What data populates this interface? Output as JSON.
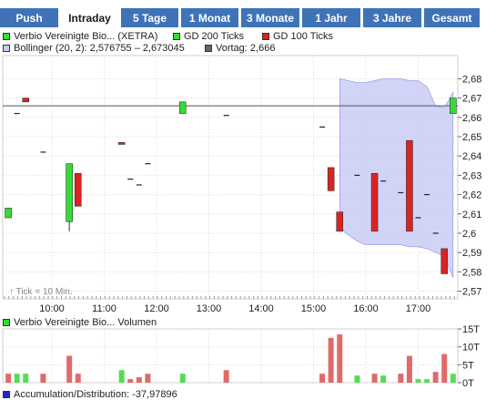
{
  "tabs": [
    {
      "label": "Push",
      "active": false
    },
    {
      "label": "Intraday",
      "active": true
    },
    {
      "label": "5 Tage",
      "active": false
    },
    {
      "label": "1 Monat",
      "active": false
    },
    {
      "label": "3 Monate",
      "active": false
    },
    {
      "label": "1 Jahr",
      "active": false
    },
    {
      "label": "3 Jahre",
      "active": false
    },
    {
      "label": "Gesamt",
      "active": false
    }
  ],
  "legend": {
    "series": "Verbio Vereinigte Bio... (XETRA)",
    "gd200": "GD 200 Ticks",
    "gd100": "GD 100 Ticks",
    "bollinger": "Bollinger (20, 2): 2,576755 – 2,673045",
    "vortag": "Vortag: 2,666"
  },
  "colors": {
    "up": "#33dd33",
    "down": "#dd2222",
    "band": "#c9ccf6",
    "band_edge": "#8a8fe8",
    "volume": "#e06a6a",
    "volume_up": "#55dd55",
    "grid": "#d9d9d9",
    "tab_bg": "#3f73b8"
  },
  "tick_note": "↑ Tick = 10 Min.",
  "volume_legend": "Verbio Vereinigte Bio... Volumen",
  "ad_legend": "Accumulation/Distribution: -37,97896",
  "chart_data": {
    "type": "candlestick",
    "x_ticks": [
      "10:00",
      "11:00",
      "12:00",
      "13:00",
      "14:00",
      "15:00",
      "16:00",
      "17:00"
    ],
    "y_ticks": [
      "2,68",
      "2,67",
      "2,66",
      "2,65",
      "2,64",
      "2,63",
      "2,62",
      "2,61",
      "2,6",
      "2,59",
      "2,58",
      "2,57"
    ],
    "ylim": [
      2.566,
      2.692
    ],
    "vortag": 2.666,
    "candles": [
      {
        "t": "09:10",
        "o": 2.608,
        "h": 2.613,
        "l": 2.608,
        "c": 2.613
      },
      {
        "t": "09:20",
        "o": 2.662,
        "h": 2.662,
        "l": 2.662,
        "c": 2.662
      },
      {
        "t": "09:30",
        "o": 2.67,
        "h": 2.67,
        "l": 2.668,
        "c": 2.668
      },
      {
        "t": "09:50",
        "o": 2.642,
        "h": 2.642,
        "l": 2.642,
        "c": 2.642
      },
      {
        "t": "10:20",
        "o": 2.606,
        "h": 2.636,
        "l": 2.601,
        "c": 2.636
      },
      {
        "t": "10:30",
        "o": 2.631,
        "h": 2.631,
        "l": 2.614,
        "c": 2.614
      },
      {
        "t": "11:20",
        "o": 2.647,
        "h": 2.647,
        "l": 2.646,
        "c": 2.646
      },
      {
        "t": "11:30",
        "o": 2.628,
        "h": 2.628,
        "l": 2.628,
        "c": 2.628
      },
      {
        "t": "11:40",
        "o": 2.625,
        "h": 2.625,
        "l": 2.625,
        "c": 2.625
      },
      {
        "t": "11:50",
        "o": 2.636,
        "h": 2.636,
        "l": 2.636,
        "c": 2.636
      },
      {
        "t": "12:30",
        "o": 2.662,
        "h": 2.668,
        "l": 2.662,
        "c": 2.668
      },
      {
        "t": "13:20",
        "o": 2.661,
        "h": 2.661,
        "l": 2.661,
        "c": 2.661
      },
      {
        "t": "15:10",
        "o": 2.655,
        "h": 2.655,
        "l": 2.655,
        "c": 2.655
      },
      {
        "t": "15:20",
        "o": 2.634,
        "h": 2.634,
        "l": 2.622,
        "c": 2.622
      },
      {
        "t": "15:30",
        "o": 2.611,
        "h": 2.611,
        "l": 2.601,
        "c": 2.601
      },
      {
        "t": "15:50",
        "o": 2.63,
        "h": 2.63,
        "l": 2.63,
        "c": 2.63
      },
      {
        "t": "16:10",
        "o": 2.631,
        "h": 2.631,
        "l": 2.601,
        "c": 2.601
      },
      {
        "t": "16:20",
        "o": 2.627,
        "h": 2.627,
        "l": 2.627,
        "c": 2.627
      },
      {
        "t": "16:40",
        "o": 2.621,
        "h": 2.621,
        "l": 2.621,
        "c": 2.621
      },
      {
        "t": "16:50",
        "o": 2.648,
        "h": 2.648,
        "l": 2.601,
        "c": 2.601
      },
      {
        "t": "17:00",
        "o": 2.608,
        "h": 2.608,
        "l": 2.608,
        "c": 2.608
      },
      {
        "t": "17:10",
        "o": 2.62,
        "h": 2.62,
        "l": 2.62,
        "c": 2.62
      },
      {
        "t": "17:20",
        "o": 2.6,
        "h": 2.6,
        "l": 2.6,
        "c": 2.6
      },
      {
        "t": "17:30",
        "o": 2.592,
        "h": 2.592,
        "l": 2.579,
        "c": 2.579
      },
      {
        "t": "17:40",
        "o": 2.662,
        "h": 2.67,
        "l": 2.662,
        "c": 2.67
      }
    ],
    "bollinger": {
      "t": [
        "15:30",
        "15:40",
        "15:50",
        "16:00",
        "16:10",
        "16:20",
        "16:30",
        "16:40",
        "16:50",
        "17:00",
        "17:10",
        "17:20",
        "17:30",
        "17:40"
      ],
      "upper": [
        2.68,
        2.679,
        2.678,
        2.678,
        2.679,
        2.68,
        2.68,
        2.68,
        2.679,
        2.679,
        2.676,
        2.666,
        2.665,
        2.673
      ],
      "lower": [
        2.603,
        2.599,
        2.596,
        2.594,
        2.594,
        2.594,
        2.594,
        2.594,
        2.593,
        2.593,
        2.592,
        2.59,
        2.588,
        2.577
      ]
    },
    "volume": {
      "y_ticks": [
        "15T",
        "10T",
        "5T",
        "0T"
      ],
      "ylim": [
        0,
        15
      ],
      "bars": [
        {
          "t": "09:10",
          "v": 2.5,
          "up": false
        },
        {
          "t": "09:20",
          "v": 2.5,
          "up": true
        },
        {
          "t": "09:30",
          "v": 2.5,
          "up": true
        },
        {
          "t": "09:50",
          "v": 2.5,
          "up": false
        },
        {
          "t": "10:20",
          "v": 7.5,
          "up": false
        },
        {
          "t": "10:30",
          "v": 2.5,
          "up": false
        },
        {
          "t": "11:20",
          "v": 3.5,
          "up": true
        },
        {
          "t": "11:30",
          "v": 1.0,
          "up": false
        },
        {
          "t": "11:40",
          "v": 1.5,
          "up": false
        },
        {
          "t": "11:50",
          "v": 2.5,
          "up": false
        },
        {
          "t": "12:30",
          "v": 2.5,
          "up": true
        },
        {
          "t": "13:20",
          "v": 3.5,
          "up": false
        },
        {
          "t": "15:10",
          "v": 2.5,
          "up": false
        },
        {
          "t": "15:20",
          "v": 12.5,
          "up": false
        },
        {
          "t": "15:30",
          "v": 13.5,
          "up": false
        },
        {
          "t": "15:50",
          "v": 2.0,
          "up": true
        },
        {
          "t": "16:10",
          "v": 2.5,
          "up": false
        },
        {
          "t": "16:20",
          "v": 2.0,
          "up": true
        },
        {
          "t": "16:40",
          "v": 2.5,
          "up": false
        },
        {
          "t": "16:50",
          "v": 7.5,
          "up": false
        },
        {
          "t": "17:00",
          "v": 1.0,
          "up": true
        },
        {
          "t": "17:10",
          "v": 1.0,
          "up": true
        },
        {
          "t": "17:20",
          "v": 3.0,
          "up": false
        },
        {
          "t": "17:30",
          "v": 8.0,
          "up": false
        },
        {
          "t": "17:40",
          "v": 2.5,
          "up": true
        }
      ]
    }
  }
}
